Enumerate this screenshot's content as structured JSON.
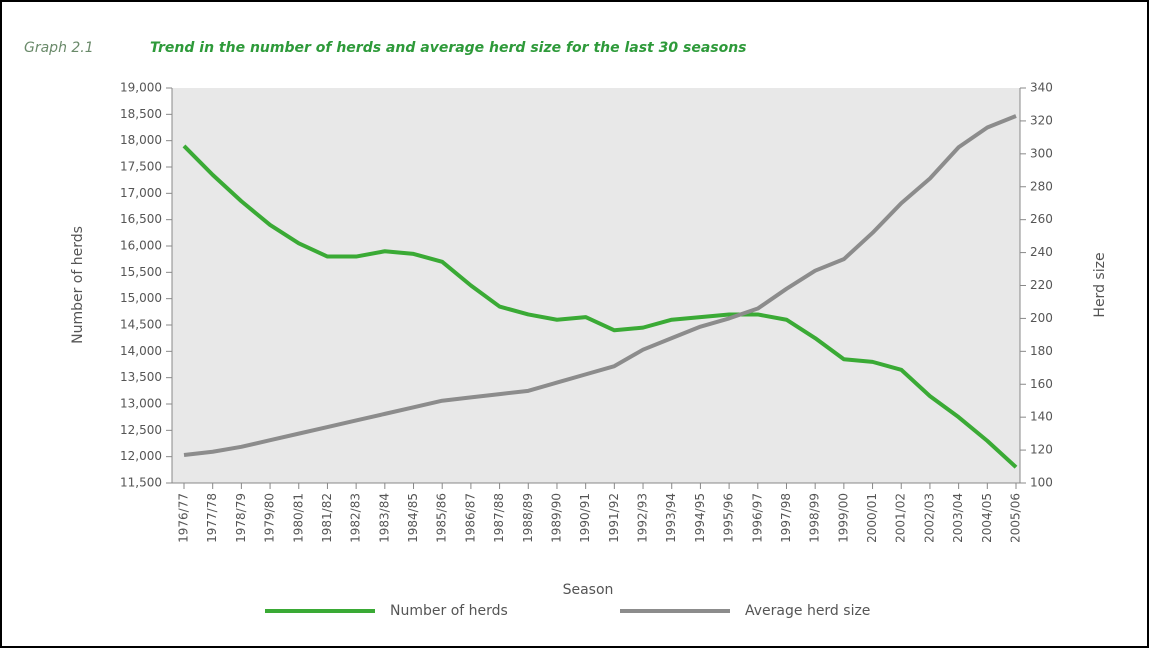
{
  "chart_data": {
    "type": "line",
    "label": "Graph 2.1",
    "title": "Trend in the number of herds and average herd size for the last 30 seasons",
    "xlabel": "Season",
    "ylabel": "Number of herds",
    "y2label": "Herd size",
    "categories": [
      "1976/77",
      "1977/78",
      "1978/79",
      "1979/80",
      "1980/81",
      "1981/82",
      "1982/83",
      "1983/84",
      "1984/85",
      "1985/86",
      "1986/87",
      "1987/88",
      "1988/89",
      "1989/90",
      "1990/91",
      "1991/92",
      "1992/93",
      "1993/94",
      "1994/95",
      "1995/96",
      "1996/97",
      "1997/98",
      "1998/99",
      "1999/00",
      "2000/01",
      "2001/02",
      "2002/03",
      "2003/04",
      "2004/05",
      "2005/06"
    ],
    "series": [
      {
        "name": "Number of herds",
        "color": "#3aaa35",
        "values": [
          17900,
          17350,
          16850,
          16400,
          16050,
          15800,
          15800,
          15900,
          15850,
          15700,
          15250,
          14850,
          14700,
          14600,
          14650,
          14400,
          14450,
          14600,
          14650,
          14700,
          14700,
          14600,
          14250,
          13850,
          13800,
          13650,
          13150,
          12750,
          12300,
          11800
        ]
      },
      {
        "name": "Average herd size",
        "color": "#8c8c8c",
        "axis": "y2",
        "values": [
          117,
          119,
          122,
          126,
          130,
          134,
          138,
          142,
          146,
          150,
          152,
          154,
          156,
          161,
          166,
          171,
          181,
          188,
          195,
          200,
          206,
          218,
          229,
          236,
          252,
          270,
          285,
          304,
          316,
          323
        ]
      }
    ],
    "ylim": [
      11500,
      19000
    ],
    "yticks": [
      {
        "value": 11500,
        "label": "11,500"
      },
      {
        "value": 12000,
        "label": "12,000"
      },
      {
        "value": 12500,
        "label": "12,500"
      },
      {
        "value": 13000,
        "label": "13,000"
      },
      {
        "value": 13500,
        "label": "13,500"
      },
      {
        "value": 14000,
        "label": "14,000"
      },
      {
        "value": 14500,
        "label": "14,500"
      },
      {
        "value": 15000,
        "label": "15,000"
      },
      {
        "value": 15500,
        "label": "15,500"
      },
      {
        "value": 16000,
        "label": "16,000"
      },
      {
        "value": 16500,
        "label": "16,500"
      },
      {
        "value": 17000,
        "label": "17,000"
      },
      {
        "value": 17500,
        "label": "17,500"
      },
      {
        "value": 18000,
        "label": "18,000"
      },
      {
        "value": 18500,
        "label": "18,500"
      },
      {
        "value": 19000,
        "label": "19,000"
      }
    ],
    "y2lim": [
      100,
      340
    ],
    "y2ticks": [
      100,
      120,
      140,
      160,
      180,
      200,
      220,
      240,
      260,
      280,
      300,
      320,
      340
    ],
    "legend": "bottom"
  }
}
